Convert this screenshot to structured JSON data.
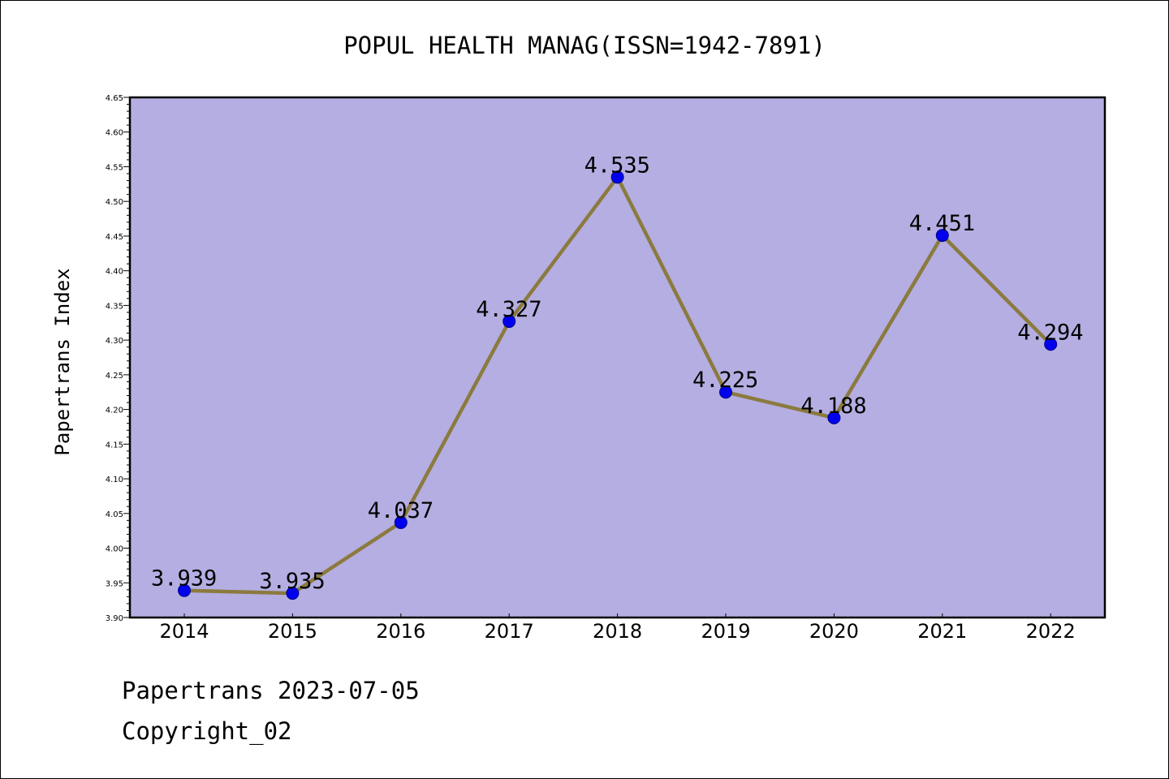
{
  "chart_data": {
    "type": "line",
    "title": "POPUL HEALTH MANAG(ISSN=1942-7891)",
    "ylabel": "Papertrans Index",
    "xlabel": "",
    "categories": [
      "2014",
      "2015",
      "2016",
      "2017",
      "2018",
      "2019",
      "2020",
      "2021",
      "2022"
    ],
    "values": [
      3.939,
      3.935,
      4.037,
      4.327,
      4.535,
      4.225,
      4.188,
      4.451,
      4.294
    ],
    "data_labels": [
      "3.939",
      "3.935",
      "4.037",
      "4.327",
      "4.535",
      "4.225",
      "4.188",
      "4.451",
      "4.294"
    ],
    "ylim": [
      3.9,
      4.65
    ],
    "yticks": [
      "3.90",
      "3.95",
      "4.00",
      "4.05",
      "4.10",
      "4.15",
      "4.20",
      "4.25",
      "4.30",
      "4.35",
      "4.40",
      "4.45",
      "4.50",
      "4.55",
      "4.60",
      "4.65"
    ],
    "grid": false,
    "legend": "none",
    "colors": {
      "plot_background": "#b4aee2",
      "line": "#8b7a3e",
      "marker": "#0000ee",
      "marker_edge": "#00008b",
      "axis": "#000000",
      "text": "#000000"
    }
  },
  "footer": {
    "date_line": "Papertrans 2023-07-05",
    "copyright_line": "Copyright_02"
  }
}
